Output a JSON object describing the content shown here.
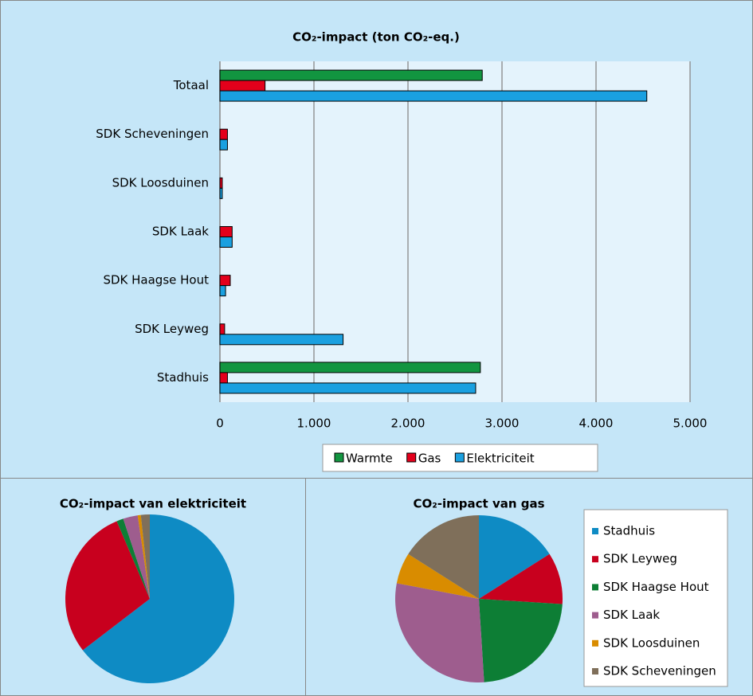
{
  "chart_data": [
    {
      "type": "bar",
      "orientation": "horizontal",
      "title": "CO₂-impact (ton CO₂-eq.)",
      "categories": [
        "Totaal",
        "SDK Scheveningen",
        "SDK Loosduinen",
        "SDK Laak",
        "SDK Haagse Hout",
        "SDK Leyweg",
        "Stadhuis"
      ],
      "series": [
        {
          "name": "Warmte",
          "color": "#129540",
          "values": [
            2790,
            0,
            0,
            0,
            0,
            0,
            2770
          ]
        },
        {
          "name": "Gas",
          "color": "#e3001b",
          "values": [
            480,
            80,
            25,
            130,
            110,
            50,
            80
          ]
        },
        {
          "name": "Elektriciteit",
          "color": "#1aa0e0",
          "values": [
            4540,
            80,
            25,
            130,
            60,
            1310,
            2720
          ]
        }
      ],
      "xlim": [
        0,
        5000
      ],
      "xticks": [
        0,
        {
          "value": 1000,
          "label": "1.000"
        },
        {
          "value": 2000,
          "label": "2.000"
        },
        {
          "value": 3000,
          "label": "3.000"
        },
        {
          "value": 4000,
          "label": "4.000"
        },
        {
          "value": 5000,
          "label": "5.000"
        }
      ],
      "grid": true,
      "legend": "bottom"
    },
    {
      "type": "pie",
      "title": "CO₂-impact van elektriciteit",
      "values": [
        64.6,
        29,
        1.3,
        2.8,
        0.6,
        1.7
      ],
      "colors": [
        "#0e8bc4",
        "#c8001e",
        "#0d7e35",
        "#9e5d8e",
        "#d98c00",
        "#7f6f5a"
      ]
    },
    {
      "type": "pie",
      "title": "CO₂-impact van gas",
      "categories": [
        "Stadhuis",
        "SDK Leyweg",
        "SDK Haagse Hout",
        "SDK Laak",
        "SDK Loosduinen",
        "SDK Scheveningen"
      ],
      "values": [
        16,
        10,
        23,
        29,
        6,
        16
      ],
      "colors": [
        "#0e8bc4",
        "#c8001e",
        "#0d7e35",
        "#9e5d8e",
        "#d98c00",
        "#7f6f5a"
      ],
      "legend": "right"
    }
  ]
}
